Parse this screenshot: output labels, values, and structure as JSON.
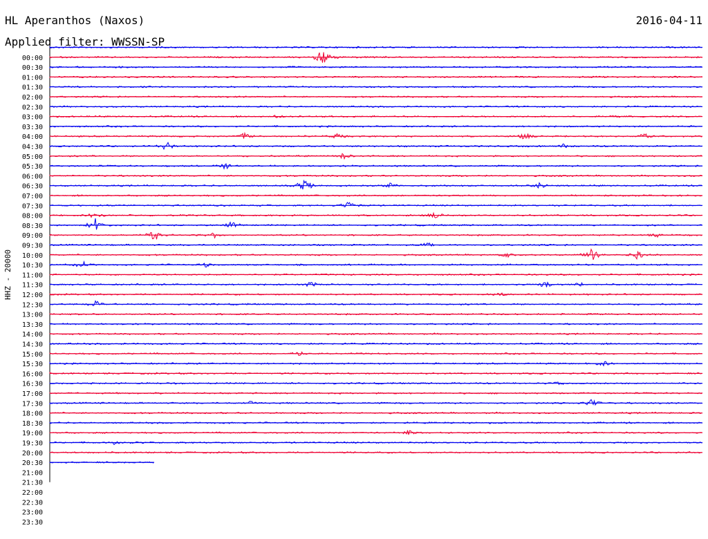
{
  "header": {
    "station": "HL Aperanthos (Naxos)",
    "date": "2016-04-11",
    "filter": "Applied filter: WWSSN-SP"
  },
  "colors": {
    "series_a": "#0000ee",
    "series_b": "#ee0033",
    "axis": "#000000"
  },
  "chart_data": {
    "type": "line",
    "title": "",
    "ylabel": "HHZ - 20000",
    "xlabel": "",
    "grid": false,
    "time_labels": [
      "00:00",
      "00:30",
      "01:00",
      "01:30",
      "02:00",
      "02:30",
      "03:00",
      "03:30",
      "04:00",
      "04:30",
      "05:00",
      "05:30",
      "06:00",
      "06:30",
      "07:00",
      "07:30",
      "08:00",
      "08:30",
      "09:00",
      "09:30",
      "10:00",
      "10:30",
      "11:00",
      "11:30",
      "12:00",
      "12:30",
      "13:00",
      "13:30",
      "14:00",
      "14:30",
      "15:00",
      "15:30",
      "16:00",
      "16:30",
      "17:00",
      "17:30",
      "18:00",
      "18:30",
      "19:00",
      "19:30",
      "20:00",
      "20:30",
      "21:00",
      "21:30",
      "22:00",
      "22:30",
      "23:00",
      "23:30"
    ],
    "traces_with_data": 43,
    "last_trace_fraction": 0.16,
    "events": [
      {
        "row": 1,
        "pos": 0.42,
        "amp": 14
      },
      {
        "row": 7,
        "pos": 0.35,
        "amp": 4
      },
      {
        "row": 7,
        "pos": 0.87,
        "amp": 4
      },
      {
        "row": 9,
        "pos": 0.3,
        "amp": 7
      },
      {
        "row": 9,
        "pos": 0.44,
        "amp": 6
      },
      {
        "row": 9,
        "pos": 0.73,
        "amp": 7
      },
      {
        "row": 9,
        "pos": 0.91,
        "amp": 6
      },
      {
        "row": 10,
        "pos": 0.18,
        "amp": 8
      },
      {
        "row": 10,
        "pos": 0.79,
        "amp": 5
      },
      {
        "row": 11,
        "pos": 0.45,
        "amp": 6
      },
      {
        "row": 12,
        "pos": 0.27,
        "amp": 6
      },
      {
        "row": 14,
        "pos": 0.39,
        "amp": 10
      },
      {
        "row": 14,
        "pos": 0.52,
        "amp": 5
      },
      {
        "row": 14,
        "pos": 0.75,
        "amp": 5
      },
      {
        "row": 16,
        "pos": 0.46,
        "amp": 9
      },
      {
        "row": 17,
        "pos": 0.07,
        "amp": 8
      },
      {
        "row": 17,
        "pos": 0.59,
        "amp": 7
      },
      {
        "row": 18,
        "pos": 0.07,
        "amp": 12
      },
      {
        "row": 18,
        "pos": 0.28,
        "amp": 7
      },
      {
        "row": 19,
        "pos": 0.16,
        "amp": 10
      },
      {
        "row": 19,
        "pos": 0.25,
        "amp": 6
      },
      {
        "row": 19,
        "pos": 0.93,
        "amp": 5
      },
      {
        "row": 20,
        "pos": 0.58,
        "amp": 6
      },
      {
        "row": 21,
        "pos": 0.7,
        "amp": 5
      },
      {
        "row": 21,
        "pos": 0.83,
        "amp": 10
      },
      {
        "row": 21,
        "pos": 0.9,
        "amp": 8
      },
      {
        "row": 22,
        "pos": 0.05,
        "amp": 6
      },
      {
        "row": 22,
        "pos": 0.24,
        "amp": 5
      },
      {
        "row": 24,
        "pos": 0.4,
        "amp": 6
      },
      {
        "row": 24,
        "pos": 0.76,
        "amp": 8
      },
      {
        "row": 24,
        "pos": 0.81,
        "amp": 5
      },
      {
        "row": 25,
        "pos": 0.69,
        "amp": 4
      },
      {
        "row": 26,
        "pos": 0.07,
        "amp": 6
      },
      {
        "row": 31,
        "pos": 0.38,
        "amp": 6
      },
      {
        "row": 32,
        "pos": 0.85,
        "amp": 6
      },
      {
        "row": 34,
        "pos": 0.78,
        "amp": 4
      },
      {
        "row": 36,
        "pos": 0.83,
        "amp": 8
      },
      {
        "row": 36,
        "pos": 0.31,
        "amp": 4
      },
      {
        "row": 39,
        "pos": 0.55,
        "amp": 6
      },
      {
        "row": 40,
        "pos": 0.1,
        "amp": 4
      }
    ]
  }
}
